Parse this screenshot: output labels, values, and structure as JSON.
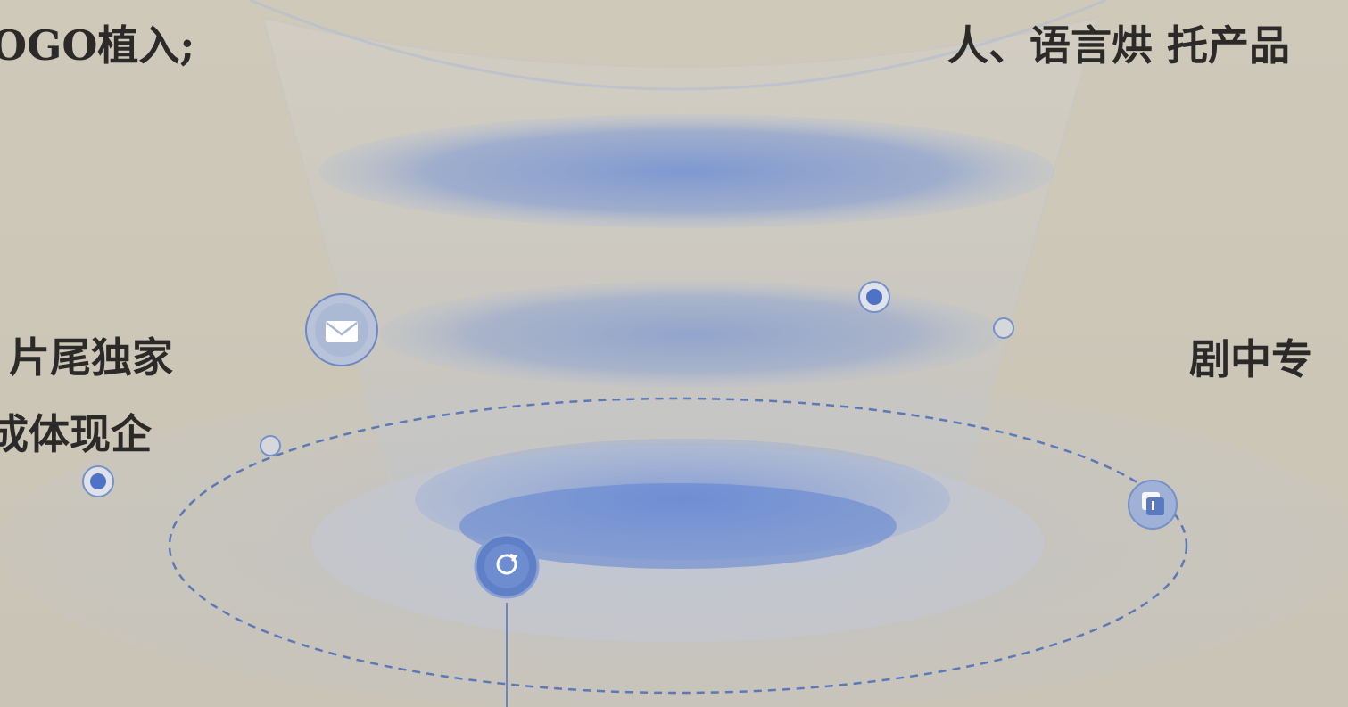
{
  "labels": {
    "top_left": "OGO植入;",
    "top_right": "人、语言烘 托产品",
    "mid_left_line1": "片尾独家",
    "mid_left_line2": "成体现企",
    "mid_right": "剧中专"
  },
  "icons": [
    "mail-icon",
    "refresh-icon",
    "chat-icon",
    "filled-pin-icon",
    "hollow-pin-icon"
  ],
  "colors": {
    "background": "#cdc7b8",
    "accent_blue": "#4f72c6",
    "line_blue": "#6f86b8",
    "text": "#2b2a28"
  }
}
